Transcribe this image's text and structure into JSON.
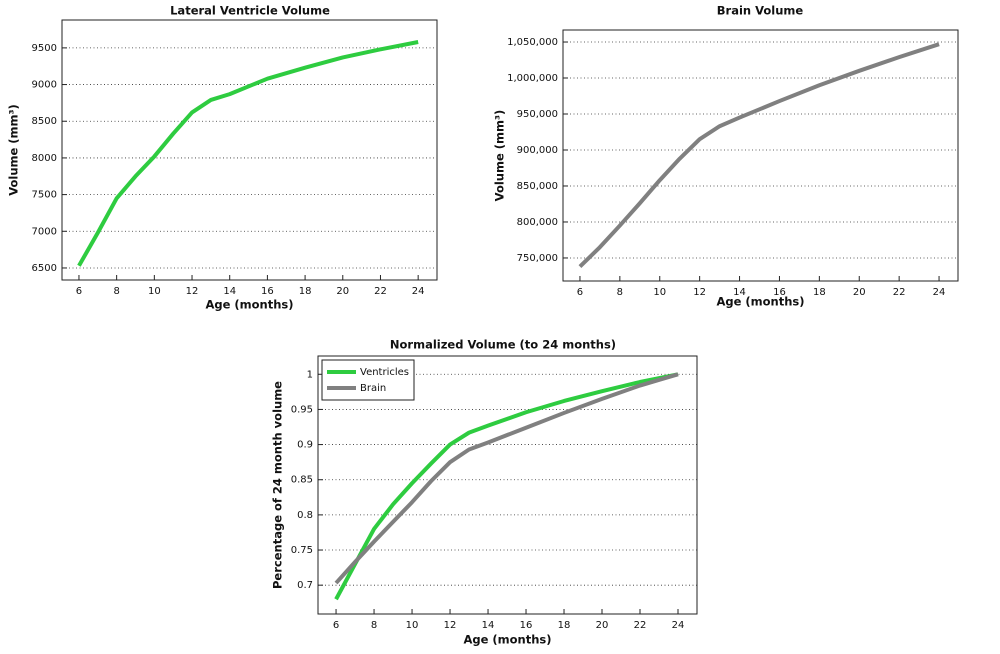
{
  "chart_data": [
    {
      "type": "line",
      "title": "Lateral Ventricle Volume",
      "x_label": "Age (months)",
      "y_label": "Volume (mm³)",
      "x": [
        6,
        7,
        8,
        9,
        10,
        11,
        12,
        13,
        14,
        16,
        18,
        20,
        22,
        24
      ],
      "values": [
        6530,
        6980,
        7450,
        7750,
        8020,
        8330,
        8620,
        8790,
        8870,
        9080,
        9230,
        9370,
        9480,
        9580
      ],
      "color": "#2ecc40",
      "xlim": [
        5.1,
        25
      ],
      "xticks": [
        6,
        8,
        10,
        12,
        14,
        16,
        18,
        20,
        22,
        24
      ],
      "ylim": [
        6336,
        9880
      ],
      "yticks": [
        6500,
        7000,
        7500,
        8000,
        8500,
        9000,
        9500
      ],
      "grid": true
    },
    {
      "type": "line",
      "title": "Brain Volume",
      "x_label": "Age (months)",
      "y_label": "Volume (mm³)",
      "x": [
        6,
        7,
        8,
        9,
        10,
        11,
        12,
        13,
        14,
        16,
        18,
        20,
        22,
        24
      ],
      "values": [
        738000,
        765000,
        795000,
        826000,
        858000,
        888000,
        915000,
        933000,
        945000,
        968000,
        990000,
        1010000,
        1029000,
        1047000
      ],
      "color": "#808080",
      "xlim": [
        5.15,
        24.95
      ],
      "xticks": [
        6,
        8,
        10,
        12,
        14,
        16,
        18,
        20,
        22,
        24
      ],
      "ylim": [
        718000,
        1066700
      ],
      "yticks": [
        {
          "value": 750000,
          "label": "750,000"
        },
        {
          "value": 800000,
          "label": "800,000"
        },
        {
          "value": 850000,
          "label": "850,000"
        },
        {
          "value": 900000,
          "label": "900,000"
        },
        {
          "value": 950000,
          "label": "950,000"
        },
        {
          "value": 1000000,
          "label": "1,000,000"
        },
        {
          "value": 1050000,
          "label": "1,050,000"
        }
      ],
      "grid": true
    },
    {
      "type": "line",
      "title": "Normalized Volume (to 24 months)",
      "x_label": "Age (months)",
      "y_label": "Percentage of 24 month volume",
      "x": [
        6,
        7,
        8,
        9,
        10,
        11,
        12,
        13,
        14,
        16,
        18,
        20,
        22,
        24
      ],
      "series": [
        {
          "name": "Ventricles",
          "color": "#2ecc40",
          "values": [
            0.68,
            0.73,
            0.78,
            0.815,
            0.845,
            0.873,
            0.9,
            0.917,
            0.927,
            0.946,
            0.962,
            0.976,
            0.989,
            1
          ]
        },
        {
          "name": "Brain",
          "color": "#808080",
          "values": [
            0.703,
            0.733,
            0.762,
            0.79,
            0.818,
            0.848,
            0.875,
            0.893,
            0.903,
            0.924,
            0.945,
            0.965,
            0.984,
            1
          ]
        }
      ],
      "xlim": [
        5.05,
        25
      ],
      "xticks": [
        6,
        8,
        10,
        12,
        14,
        16,
        18,
        20,
        22,
        24
      ],
      "ylim": [
        0.659,
        1.026
      ],
      "yticks": [
        0.7,
        0.75,
        0.8,
        0.85,
        0.9,
        0.95,
        1
      ],
      "grid": true,
      "legend": "upper-left"
    }
  ]
}
